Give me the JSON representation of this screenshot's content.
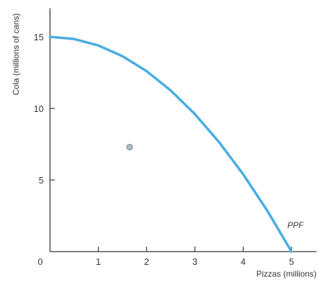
{
  "chart_data": {
    "type": "line",
    "xlabel": "Pizzas (millions)",
    "ylabel": "Cola (millions of cans)",
    "xlim": [
      0,
      5.5
    ],
    "ylim": [
      0,
      17
    ],
    "x_ticks": [
      "1",
      "2",
      "3",
      "4",
      "5"
    ],
    "y_ticks": [
      "5",
      "10",
      "15"
    ],
    "origin_label": "0",
    "grid": false,
    "series": [
      {
        "name": "PPF",
        "color": "#4AADE0",
        "x": [
          0,
          0.5,
          1,
          1.5,
          2,
          2.5,
          3,
          3.5,
          4,
          4.5,
          5
        ],
        "y": [
          15,
          14.85,
          14.4,
          13.65,
          12.6,
          11.25,
          9.6,
          7.65,
          5.4,
          2.85,
          0
        ]
      }
    ],
    "points": [
      {
        "x": 1.65,
        "y": 7.3,
        "color": "#A9BEC8"
      }
    ]
  }
}
